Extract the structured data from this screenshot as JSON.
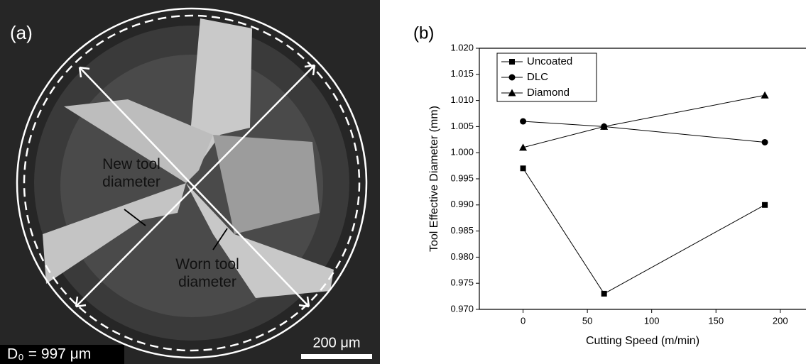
{
  "panel_a": {
    "label": "(a)",
    "annotations": [
      "New tool\ndiameter",
      "Worn tool\ndiameter"
    ],
    "measurement": "D₀ = 997 μm",
    "scale_bar": "200 μm"
  },
  "chart_data": {
    "type": "line",
    "label": "(b)",
    "x_label": "Cutting Speed (m/min)",
    "y_label": "Tool Effective Diameter (mm)",
    "x": [
      0,
      63,
      188
    ],
    "series": [
      {
        "name": "Uncoated",
        "color": "#000000",
        "values": [
          0.997,
          0.973,
          0.99
        ]
      },
      {
        "name": "DLC",
        "color": "#000000",
        "values": [
          1.006,
          1.005,
          1.002
        ]
      },
      {
        "name": "Diamond",
        "color": "#000000",
        "values": [
          1.001,
          1.005,
          1.011
        ]
      }
    ],
    "xlim": [
      -34,
      220
    ],
    "xticks": [
      0,
      50,
      100,
      150,
      200
    ],
    "ylim": [
      0.97,
      1.02
    ],
    "yticks": [
      {
        "value": 0.97,
        "label": "0.970"
      },
      {
        "value": 0.975,
        "label": "0.975"
      },
      {
        "value": 0.98,
        "label": "0.980"
      },
      {
        "value": 0.985,
        "label": "0.985"
      },
      {
        "value": 0.99,
        "label": "0.990"
      },
      {
        "value": 0.995,
        "label": "0.995"
      },
      {
        "value": 1.0,
        "label": "1.000"
      },
      {
        "value": 1.005,
        "label": "1.005"
      },
      {
        "value": 1.01,
        "label": "1.010"
      },
      {
        "value": 1.015,
        "label": "1.015"
      },
      {
        "value": 1.02,
        "label": "1.020"
      }
    ],
    "legend": "upper-left",
    "grid": false
  }
}
